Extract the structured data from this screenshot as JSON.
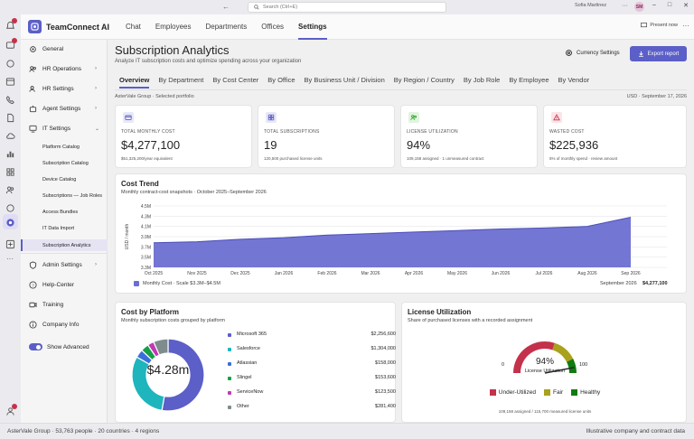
{
  "titlebar": {
    "search_placeholder": "Search (Ctrl+E)",
    "user_name": "Sofia Martinez",
    "user_initials": "SM"
  },
  "app": {
    "name": "TeamConnect AI",
    "present_label": "Present now"
  },
  "topnav": [
    "Chat",
    "Employees",
    "Departments",
    "Offices",
    "Settings"
  ],
  "sidebar": {
    "items": [
      {
        "label": "General",
        "icon": "gear-icon"
      },
      {
        "label": "HR Operations",
        "icon": "people-icon"
      },
      {
        "label": "HR Settings",
        "icon": "people-settings-icon"
      },
      {
        "label": "Agent Settings",
        "icon": "bot-icon"
      },
      {
        "label": "IT Settings",
        "icon": "monitor-icon"
      }
    ],
    "subitems": [
      "Platform Catalog",
      "Subscription Catalog",
      "Device Catalog",
      "Subscriptions — Job Roles",
      "Access Bundles",
      "IT Data Import",
      "Subscription Analytics"
    ],
    "bottom_items": [
      {
        "label": "Admin Settings",
        "icon": "shield-icon"
      },
      {
        "label": "Help-Center",
        "icon": "help-icon"
      },
      {
        "label": "Training",
        "icon": "video-icon"
      },
      {
        "label": "Company Info",
        "icon": "info-icon"
      }
    ],
    "toggle_label": "Show Advanced"
  },
  "page": {
    "title": "Subscription Analytics",
    "subtitle": "Analyze IT subscription costs and optimize spending across your organization",
    "currency_button": "Currency Settings",
    "export_button": "Export report",
    "tabs": [
      "Overview",
      "By Department",
      "By Cost Center",
      "By Office",
      "By Business Unit / Division",
      "By Region / Country",
      "By Job Role",
      "By Employee",
      "By Vendor"
    ],
    "context_left": "AsterVale Group · Selected portfolio",
    "context_right": "USD · September 17, 2026"
  },
  "kpis": [
    {
      "label": "TOTAL MONTHLY COST",
      "value": "$4,277,100",
      "sub": "$51,325,200/year equivalent",
      "icon": "wallet-icon",
      "color": "#5b5fc7",
      "bg": "#e8e8f7"
    },
    {
      "label": "TOTAL SUBSCRIPTIONS",
      "value": "19",
      "sub": "120,500 purchased license units",
      "icon": "grid-icon",
      "color": "#5b5fc7",
      "bg": "#e8e8f7"
    },
    {
      "label": "LICENSE UTILIZATION",
      "value": "94%",
      "sub": "109,158 assigned · 1 unmeasured contract",
      "icon": "users-icon",
      "color": "#13a10e",
      "bg": "#e3f3e1"
    },
    {
      "label": "WASTED COST",
      "value": "$225,936",
      "sub": "5% of monthly spend · review amount",
      "icon": "warning-icon",
      "color": "#c4314b",
      "bg": "#fbe4e7"
    }
  ],
  "cost_trend": {
    "title": "Cost Trend",
    "subtitle": "Monthly contract-cost snapshots · October 2025–September 2026",
    "legend": "Monthly Cost · Scale $3.3M–$4.5M",
    "latest_label": "September 2026",
    "latest_value": "$4,277,100"
  },
  "cost_by_platform": {
    "title": "Cost by Platform",
    "subtitle": "Monthly subscription costs grouped by platform",
    "center_label": "$4.28m"
  },
  "license_utilization": {
    "title": "License Utilization",
    "subtitle": "Share of purchased licenses with a recorded assignment",
    "gauge_value": "94%",
    "gauge_label": "License Utilization",
    "gauge_min": "0",
    "gauge_max": "100",
    "legend": [
      {
        "label": "Under-Utilized",
        "color": "#c4314b"
      },
      {
        "label": "Fair",
        "color": "#a9a21a"
      },
      {
        "label": "Healthy",
        "color": "#107c10"
      }
    ],
    "footnote": "109,158 assigned / 115,700 measured license units"
  },
  "statusbar": {
    "left": "AsterVale Group · 53,763 people · 20 countries · 4 regions",
    "right": "Illustrative company and contract data"
  },
  "chart_data": [
    {
      "type": "area",
      "title": "Cost Trend",
      "ylabel": "USD / month",
      "x": [
        "Oct 2025",
        "Nov 2025",
        "Dec 2025",
        "Jan 2026",
        "Feb 2026",
        "Mar 2026",
        "Apr 2026",
        "May 2026",
        "Jun 2026",
        "Jul 2026",
        "Aug 2026",
        "Sep 2026"
      ],
      "y_ticks": [
        "3.3M",
        "3.5M",
        "3.7M",
        "3.9M",
        "4.1M",
        "4.3M",
        "4.5M"
      ],
      "ylim": [
        3.3,
        4.5
      ],
      "series": [
        {
          "name": "Monthly Cost",
          "values": [
            3.78,
            3.8,
            3.85,
            3.88,
            3.93,
            3.96,
            3.99,
            4.02,
            4.05,
            4.07,
            4.1,
            4.28
          ],
          "color": "#6c6fd1"
        }
      ]
    },
    {
      "type": "pie",
      "title": "Cost by Platform",
      "categories": [
        "Microsoft 365",
        "Salesforce",
        "Atlassian",
        "Slingel",
        "ServiceNow",
        "Other"
      ],
      "values": [
        2256600,
        1304000,
        158000,
        153600,
        123500,
        281400
      ],
      "display_values": [
        "$2,256,600",
        "$1,304,000",
        "$158,000",
        "$153,600",
        "$123,500",
        "$281,400"
      ],
      "colors": [
        "#5b5fc7",
        "#1eb5bd",
        "#3a6fd8",
        "#15a047",
        "#c239b3",
        "#7f8c8d"
      ]
    },
    {
      "type": "gauge",
      "title": "License Utilization",
      "value": 94,
      "range": [
        0,
        100
      ]
    }
  ]
}
